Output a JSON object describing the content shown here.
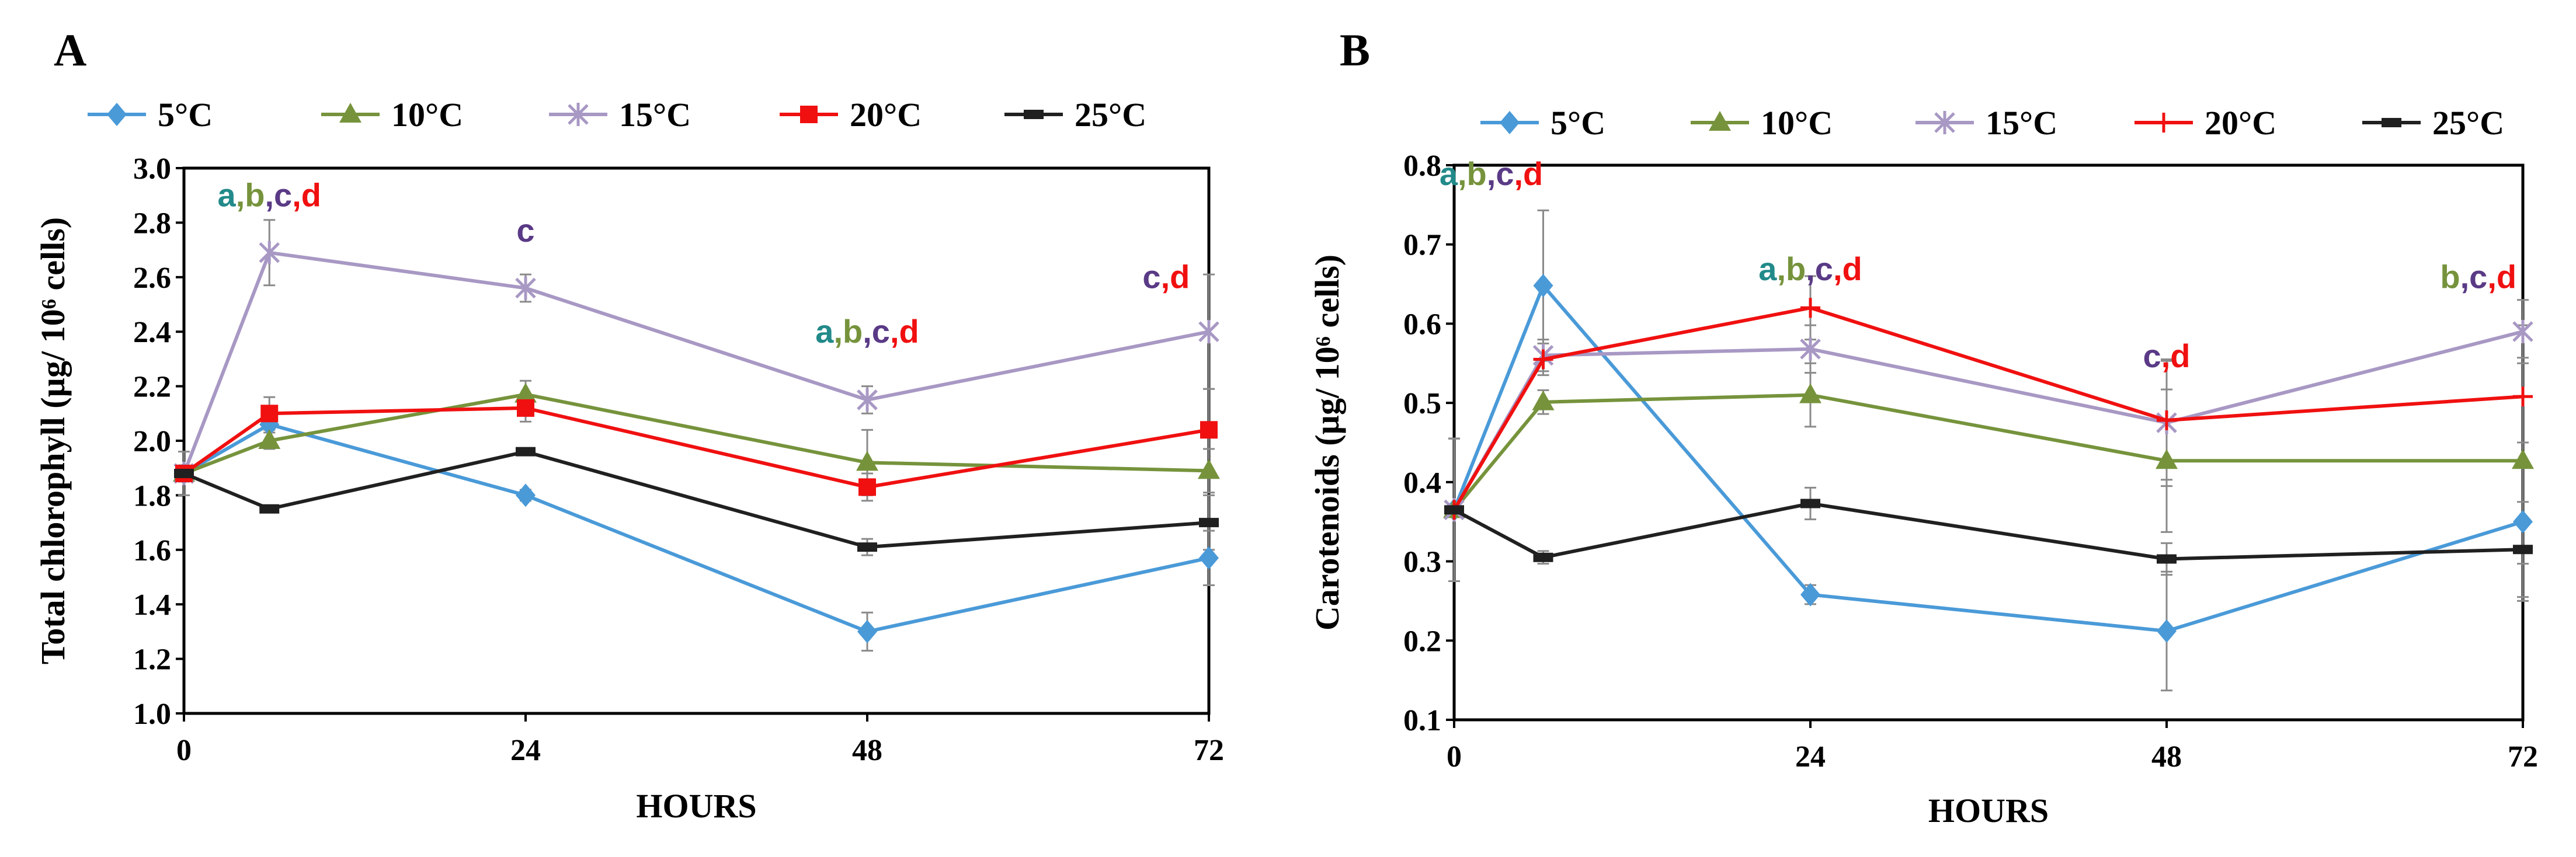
{
  "colors": {
    "5C": "#4a9ad8",
    "10C": "#76933c",
    "15C": "#a898c4",
    "20C": "#f01010",
    "25C": "#202020",
    "sig_a": "#238a8a",
    "sig_b": "#76933c",
    "sig_c": "#5a3a86",
    "sig_d": "#f01010",
    "error_bar": "#8a8a8a"
  },
  "chart_data": [
    {
      "panel": "A",
      "type": "line",
      "title": "",
      "xlabel": "HOURS",
      "ylabel": "Total chlorophyll (µg/ 10⁶ cells)",
      "xlim": [
        0,
        72
      ],
      "ylim": [
        1.0,
        3.0
      ],
      "xticks": [
        "0",
        "24",
        "48",
        "72"
      ],
      "yticks": [
        "1.0",
        "1.2",
        "1.4",
        "1.6",
        "1.8",
        "2.0",
        "2.2",
        "2.4",
        "2.6",
        "2.8",
        "3.0"
      ],
      "x": [
        0,
        6,
        24,
        48,
        72
      ],
      "legend": [
        "5°C",
        "10°C",
        "15°C",
        "20°C",
        "25°C"
      ],
      "series": [
        {
          "name": "5°C",
          "key": "5C",
          "marker": "diamond",
          "values": [
            1.88,
            2.06,
            1.8,
            1.3,
            1.57
          ],
          "errors": [
            0.02,
            0.03,
            0.02,
            0.07,
            0.1
          ]
        },
        {
          "name": "10°C",
          "key": "10C",
          "marker": "triangle",
          "values": [
            1.88,
            2.0,
            2.17,
            1.92,
            1.89
          ],
          "errors": [
            0.02,
            0.03,
            0.05,
            0.12,
            0.08
          ]
        },
        {
          "name": "15°C",
          "key": "15C",
          "marker": "star",
          "values": [
            1.88,
            2.69,
            2.56,
            2.15,
            2.4
          ],
          "errors": [
            0.03,
            0.12,
            0.05,
            0.05,
            0.21
          ]
        },
        {
          "name": "20°C",
          "key": "20C",
          "marker": "square",
          "values": [
            1.88,
            2.1,
            2.12,
            1.83,
            2.04
          ],
          "errors": [
            0.02,
            0.06,
            0.05,
            0.05,
            0.15
          ]
        },
        {
          "name": "25°C",
          "key": "25C",
          "marker": "dash",
          "values": [
            1.88,
            1.75,
            1.96,
            1.61,
            1.7
          ],
          "errors": [
            0.08,
            0.01,
            0.01,
            0.03,
            0.1
          ]
        }
      ],
      "annotations": [
        {
          "x": 6,
          "y": 2.86,
          "letters": [
            "a",
            "b",
            "c",
            "d"
          ]
        },
        {
          "x": 24,
          "y": 2.73,
          "letters": [
            "c"
          ]
        },
        {
          "x": 48,
          "y": 2.36,
          "letters": [
            "a",
            "b",
            "c",
            "d"
          ]
        },
        {
          "x": 69,
          "y": 2.56,
          "letters": [
            "c",
            "d"
          ]
        }
      ]
    },
    {
      "panel": "B",
      "type": "line",
      "title": "",
      "xlabel": "HOURS",
      "ylabel": "Carotenoids (µg/ 10⁶ cells)",
      "xlim": [
        0,
        72
      ],
      "ylim": [
        0.1,
        0.8
      ],
      "xticks": [
        "0",
        "24",
        "48",
        "72"
      ],
      "yticks": [
        "0.1",
        "0.2",
        "0.3",
        "0.4",
        "0.5",
        "0.6",
        "0.7",
        "0.8"
      ],
      "x": [
        0,
        6,
        24,
        48,
        72
      ],
      "legend": [
        "5°C",
        "10°C",
        "15°C",
        "20°C",
        "25°C"
      ],
      "series": [
        {
          "name": "5°C",
          "key": "5C",
          "marker": "diamond",
          "values": [
            0.365,
            0.648,
            0.258,
            0.212,
            0.35
          ],
          "errors": [
            0.09,
            0.095,
            0.012,
            0.075,
            0.1
          ]
        },
        {
          "name": "10°C",
          "key": "10C",
          "marker": "triangle",
          "values": [
            0.365,
            0.501,
            0.51,
            0.427,
            0.427
          ],
          "errors": [
            0.09,
            0.015,
            0.04,
            0.09,
            0.13
          ]
        },
        {
          "name": "15°C",
          "key": "15C",
          "marker": "star",
          "values": [
            0.365,
            0.56,
            0.568,
            0.475,
            0.59
          ],
          "errors": [
            0.09,
            0.02,
            0.03,
            0.08,
            0.04
          ]
        },
        {
          "name": "20°C",
          "key": "20C",
          "marker": "plus",
          "values": [
            0.365,
            0.555,
            0.62,
            0.478,
            0.508
          ],
          "errors": [
            0.09,
            0.02,
            0.04,
            0.075,
            0.09
          ]
        },
        {
          "name": "25°C",
          "key": "25C",
          "marker": "dash",
          "values": [
            0.365,
            0.305,
            0.373,
            0.303,
            0.315
          ],
          "errors": [
            0.09,
            0.008,
            0.02,
            0.02,
            0.06
          ]
        }
      ],
      "annotations": [
        {
          "x": 2.5,
          "y": 0.775,
          "letters": [
            "a",
            "b",
            "c",
            "d"
          ]
        },
        {
          "x": 24,
          "y": 0.655,
          "letters": [
            "a",
            "b",
            "c",
            "d"
          ]
        },
        {
          "x": 48,
          "y": 0.545,
          "letters": [
            "c",
            "d"
          ]
        },
        {
          "x": 69,
          "y": 0.645,
          "letters": [
            "b",
            "c",
            "d"
          ]
        }
      ]
    }
  ]
}
